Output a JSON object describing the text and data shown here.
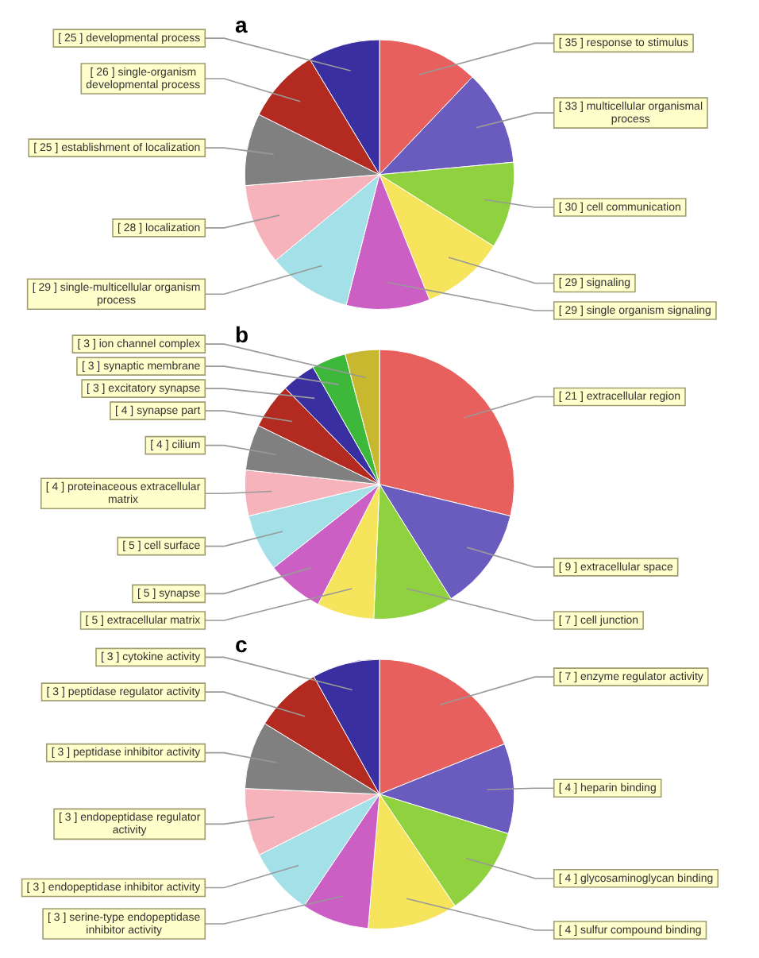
{
  "chart_data": [
    {
      "type": "pie",
      "title": "a",
      "legend": false,
      "categories": [
        "[ 35 ] response to stimulus",
        "[ 33 ] multicellular organismal process",
        "[ 30 ] cell communication",
        "[ 29 ] signaling",
        "[ 29 ] single organism signaling",
        "[ 29 ] single-multicellular organism process",
        "[ 28 ] localization",
        "[ 25 ] establishment of localization",
        "[ 26 ] single-organism developmental process",
        "[ 25 ] developmental process"
      ],
      "values": [
        35,
        33,
        30,
        29,
        29,
        29,
        28,
        25,
        26,
        25
      ],
      "colors": [
        "#e8605d",
        "#6a5bbf",
        "#8fd13f",
        "#f5e45c",
        "#cc5fc4",
        "#a3e0e8",
        "#f7b3bb",
        "#808080",
        "#b22a20",
        "#3a2fa0"
      ]
    },
    {
      "type": "pie",
      "title": "b",
      "legend": false,
      "categories": [
        "[ 21 ] extracellular region",
        "[ 9 ] extracellular space",
        "[ 7 ] cell junction",
        "[ 5 ] extracellular matrix",
        "[ 5 ] synapse",
        "[ 5 ] cell surface",
        "[ 4 ] proteinaceous extracellular matrix",
        "[ 4 ] cilium",
        "[ 4 ] synapse part",
        "[ 3 ] excitatory synapse",
        "[ 3 ] synaptic membrane",
        "[ 3 ] ion channel complex"
      ],
      "values": [
        21,
        9,
        7,
        5,
        5,
        5,
        4,
        4,
        4,
        3,
        3,
        3
      ],
      "colors": [
        "#e8605d",
        "#6a5bbf",
        "#8fd13f",
        "#f5e45c",
        "#cc5fc4",
        "#a3e0e8",
        "#f7b3bb",
        "#808080",
        "#b22a20",
        "#3a2fa0",
        "#3db83a",
        "#c8b830"
      ]
    },
    {
      "type": "pie",
      "title": "c",
      "legend": false,
      "categories": [
        "[ 7 ] enzyme regulator activity",
        "[ 4 ] heparin binding",
        "[ 4 ] glycosaminoglycan binding",
        "[ 4 ] sulfur compound binding",
        "[ 3 ] serine-type endopeptidase inhibitor activity",
        "[ 3 ] endopeptidase inhibitor activity",
        "[ 3 ] endopeptidase regulator activity",
        "[ 3 ] peptidase inhibitor activity",
        "[ 3 ] peptidase regulator activity",
        "[ 3 ] cytokine activity"
      ],
      "values": [
        7,
        4,
        4,
        4,
        3,
        3,
        3,
        3,
        3,
        3
      ],
      "colors": [
        "#e8605d",
        "#6a5bbf",
        "#8fd13f",
        "#f5e45c",
        "#cc5fc4",
        "#a3e0e8",
        "#f7b3bb",
        "#808080",
        "#b22a20",
        "#3a2fa0"
      ]
    }
  ]
}
